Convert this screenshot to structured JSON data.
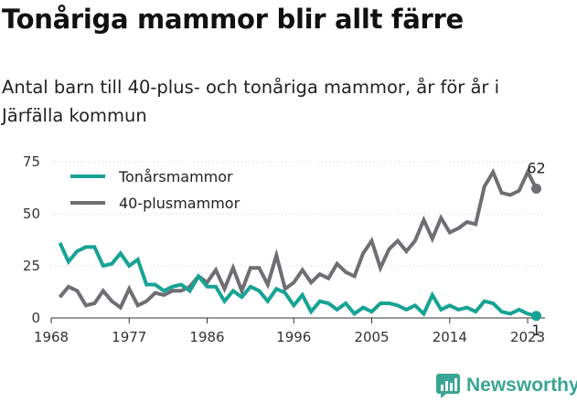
{
  "title": "Tonåriga mammor blir allt färre",
  "subtitle": "Antal barn till 40-plus- och tonåriga mammor, år för år i Järfälla kommun",
  "brand": {
    "name": "Newsworthy",
    "color": "#3aa594"
  },
  "chart_data": {
    "type": "line",
    "x": [
      1969,
      1970,
      1971,
      1972,
      1973,
      1974,
      1975,
      1976,
      1977,
      1978,
      1979,
      1980,
      1981,
      1982,
      1983,
      1984,
      1985,
      1986,
      1987,
      1988,
      1989,
      1990,
      1991,
      1992,
      1993,
      1994,
      1995,
      1996,
      1997,
      1998,
      1999,
      2000,
      2001,
      2002,
      2003,
      2004,
      2005,
      2006,
      2007,
      2008,
      2009,
      2010,
      2011,
      2012,
      2013,
      2014,
      2015,
      2016,
      2017,
      2018,
      2019,
      2020,
      2021,
      2022,
      2023,
      2024
    ],
    "series": [
      {
        "name": "Tonårsmammor",
        "color": "#17a394",
        "values": [
          36,
          27,
          32,
          34,
          34,
          25,
          26,
          31,
          25,
          28,
          16,
          16,
          13,
          15,
          16,
          13,
          20,
          15,
          15,
          8,
          13,
          10,
          15,
          13,
          8,
          14,
          12,
          6,
          11,
          3,
          8,
          7,
          4,
          7,
          2,
          5,
          3,
          7,
          7,
          6,
          4,
          6,
          2,
          11,
          4,
          6,
          4,
          5,
          3,
          8,
          7,
          3,
          2,
          4,
          2,
          1
        ]
      },
      {
        "name": "40-plusmammor",
        "color": "#6e6e73",
        "values": [
          10,
          15,
          13,
          6,
          7,
          13,
          8,
          5,
          14,
          6,
          8,
          12,
          11,
          13,
          13,
          15,
          20,
          17,
          23,
          14,
          24,
          13,
          24,
          24,
          16,
          30,
          14,
          17,
          23,
          17,
          21,
          19,
          26,
          22,
          20,
          31,
          37,
          24,
          33,
          37,
          32,
          37,
          47,
          38,
          48,
          41,
          43,
          46,
          45,
          63,
          70,
          60,
          59,
          61,
          70,
          62
        ]
      }
    ],
    "x_ticks": [
      1968,
      1977,
      1986,
      1996,
      2005,
      2014,
      2023
    ],
    "y_ticks": [
      0,
      25,
      50,
      75
    ],
    "xlim": [
      1968,
      2025
    ],
    "ylim": [
      0,
      78
    ],
    "grid": true,
    "legend_position": "top-left",
    "end_labels": [
      "1",
      "62"
    ],
    "title": "Tonåriga mammor blir allt färre",
    "xlabel": "",
    "ylabel": ""
  }
}
